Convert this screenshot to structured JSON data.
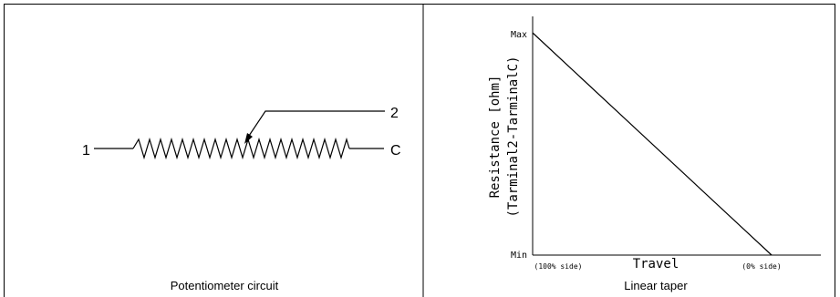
{
  "circuit": {
    "terminal_1": "1",
    "terminal_2": "2",
    "terminal_c": "C",
    "caption": "Potentiometer circuit"
  },
  "taper_chart": {
    "y_top_label": "Max",
    "y_bottom_label": "Min",
    "ylabel_line1": "Resistance [ohm]",
    "ylabel_line2": "(Tarminal2-TarminalC)",
    "xlabel": "Travel",
    "x_left_label": "(100% side)",
    "x_right_label": "(0% side)",
    "caption": "Linear taper"
  },
  "chart_data": {
    "type": "line",
    "title": "",
    "xlabel": "Travel",
    "ylabel": "Resistance [ohm] (Tarminal2-TarminalC)",
    "x": [
      "(100% side)",
      "(0% side)"
    ],
    "series": [
      {
        "values": [
          "Max",
          "Min"
        ]
      }
    ],
    "y_ticks": [
      "Min",
      "Max"
    ],
    "grid": false,
    "colors": {
      "line": "#000000",
      "text": "#000000"
    }
  }
}
